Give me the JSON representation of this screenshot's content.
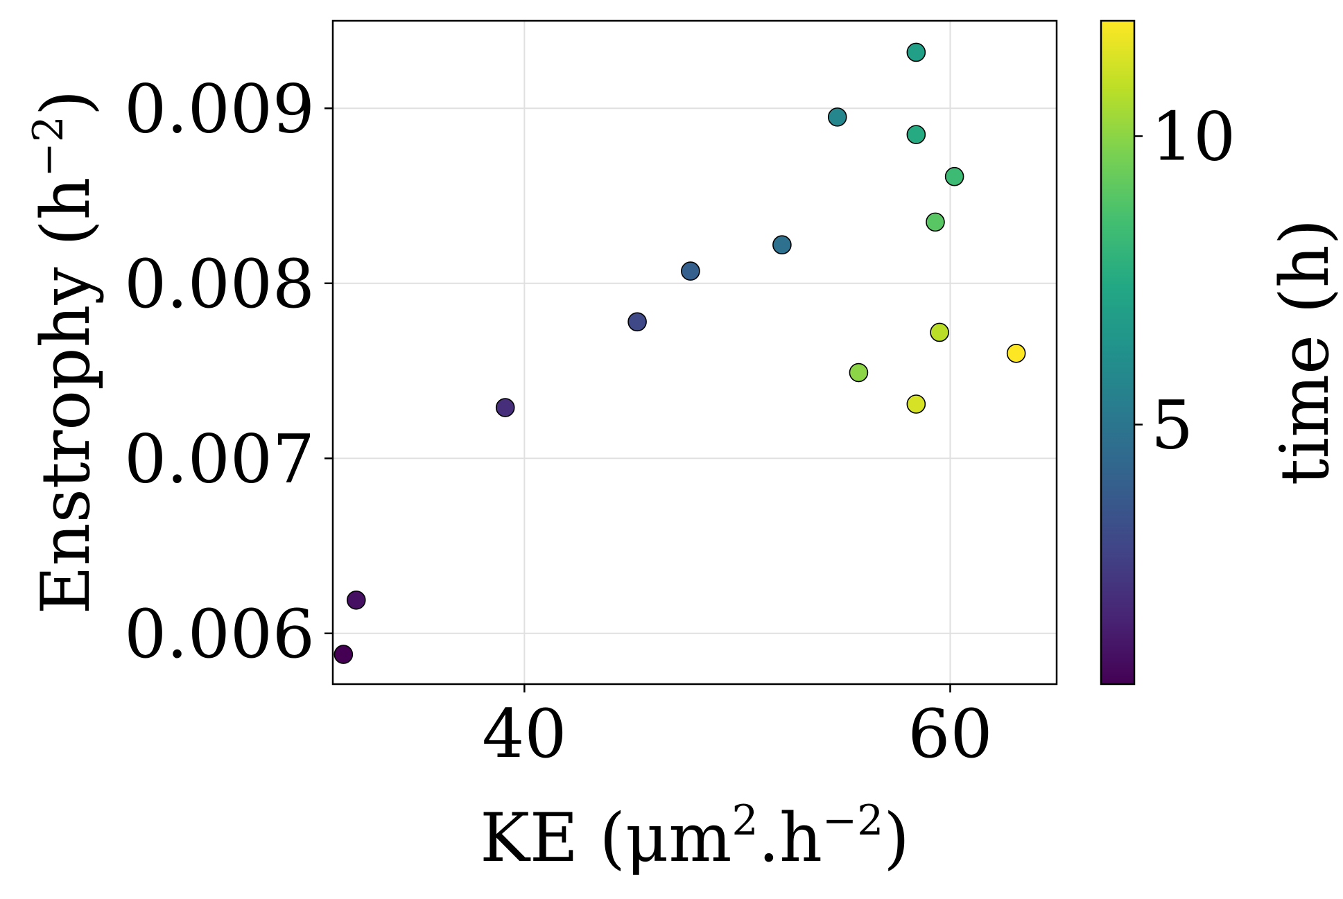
{
  "chart_data": {
    "type": "scatter",
    "title": "",
    "xlabel": "KE (μm².h⁻²)",
    "xlabel_parts": {
      "main": "KE (μm",
      "sup1": "2",
      "mid": ".h",
      "sup2": "−2",
      "end": ")"
    },
    "ylabel": "Enstrophy (h⁻²)",
    "ylabel_parts": {
      "main": "Enstrophy (h",
      "sup": "−2",
      "end": ")"
    },
    "xlim": [
      31,
      65
    ],
    "ylim": [
      0.00571,
      0.0095
    ],
    "xticks": [
      40,
      60
    ],
    "xtick_labels": [
      "40",
      "60"
    ],
    "yticks": [
      0.006,
      0.007,
      0.008,
      0.009
    ],
    "ytick_labels": [
      "0.006",
      "0.007",
      "0.008",
      "0.009"
    ],
    "grid": true,
    "colorbar": {
      "label": "time (h)",
      "colormap": "viridis",
      "range": [
        0.5,
        12.0
      ],
      "ticks": [
        5,
        10
      ],
      "tick_labels": [
        "5",
        "10"
      ]
    },
    "points": [
      {
        "x": 31.5,
        "y": 0.00588,
        "t": 0.5
      },
      {
        "x": 32.1,
        "y": 0.00619,
        "t": 1.0
      },
      {
        "x": 39.1,
        "y": 0.00729,
        "t": 2.0
      },
      {
        "x": 45.3,
        "y": 0.00778,
        "t": 3.0
      },
      {
        "x": 47.8,
        "y": 0.00807,
        "t": 4.0
      },
      {
        "x": 52.1,
        "y": 0.00822,
        "t": 4.8
      },
      {
        "x": 54.7,
        "y": 0.00895,
        "t": 5.8
      },
      {
        "x": 58.4,
        "y": 0.00932,
        "t": 7.0
      },
      {
        "x": 58.4,
        "y": 0.00885,
        "t": 7.5
      },
      {
        "x": 60.2,
        "y": 0.00861,
        "t": 8.3
      },
      {
        "x": 59.3,
        "y": 0.00835,
        "t": 9.0
      },
      {
        "x": 55.7,
        "y": 0.00749,
        "t": 10.0
      },
      {
        "x": 59.5,
        "y": 0.00772,
        "t": 10.8
      },
      {
        "x": 58.4,
        "y": 0.00731,
        "t": 11.3
      },
      {
        "x": 63.1,
        "y": 0.0076,
        "t": 12.0
      }
    ]
  },
  "colors": {
    "grid": "#e0e0e0",
    "axis": "#000000",
    "marker_edge": "#000000"
  }
}
